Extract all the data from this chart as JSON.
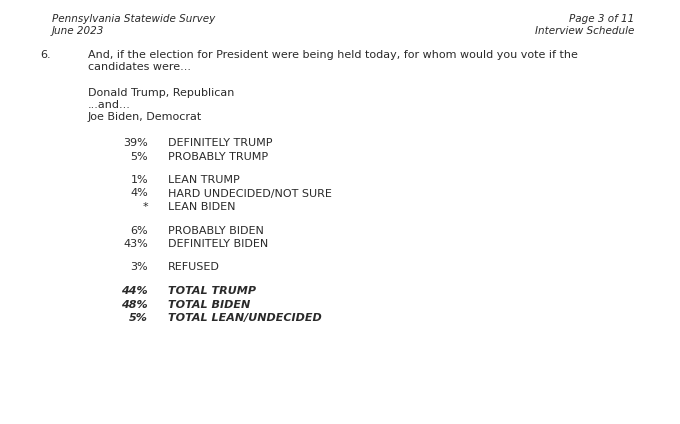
{
  "header_left_line1": "Pennsylvania Statewide Survey",
  "header_left_line2": "June 2023",
  "header_right_line1": "Page 3 of 11",
  "header_right_line2": "Interview Schedule",
  "question_number": "6.",
  "question_text_line1": "And, if the election for President were being held today, for whom would you vote if the",
  "question_text_line2": "candidates were...",
  "candidates_line1": "Donald Trump, Republican",
  "candidates_line2": "...and...",
  "candidates_line3": "Joe Biden, Democrat",
  "rows": [
    {
      "pct": "39%",
      "label": "DEFINITELY TRUMP",
      "bold": false,
      "gap_before": true
    },
    {
      "pct": "5%",
      "label": "PROBABLY TRUMP",
      "bold": false,
      "gap_before": false
    },
    {
      "pct": "1%",
      "label": "LEAN TRUMP",
      "bold": false,
      "gap_before": true
    },
    {
      "pct": "4%",
      "label": "HARD UNDECIDED/NOT SURE",
      "bold": false,
      "gap_before": false
    },
    {
      "pct": "*",
      "label": "LEAN BIDEN",
      "bold": false,
      "gap_before": false
    },
    {
      "pct": "6%",
      "label": "PROBABLY BIDEN",
      "bold": false,
      "gap_before": true
    },
    {
      "pct": "43%",
      "label": "DEFINITELY BIDEN",
      "bold": false,
      "gap_before": false
    },
    {
      "pct": "3%",
      "label": "REFUSED",
      "bold": false,
      "gap_before": true
    },
    {
      "pct": "44%",
      "label": "TOTAL TRUMP",
      "bold": true,
      "gap_before": true
    },
    {
      "pct": "48%",
      "label": "TOTAL BIDEN",
      "bold": true,
      "gap_before": false
    },
    {
      "pct": "5%",
      "label": "TOTAL LEAN/UNDECIDED",
      "bold": true,
      "gap_before": false
    }
  ],
  "bg_color": "#ffffff",
  "text_color": "#2a2a2a",
  "font_size_header": 7.5,
  "font_size_body": 8.0
}
